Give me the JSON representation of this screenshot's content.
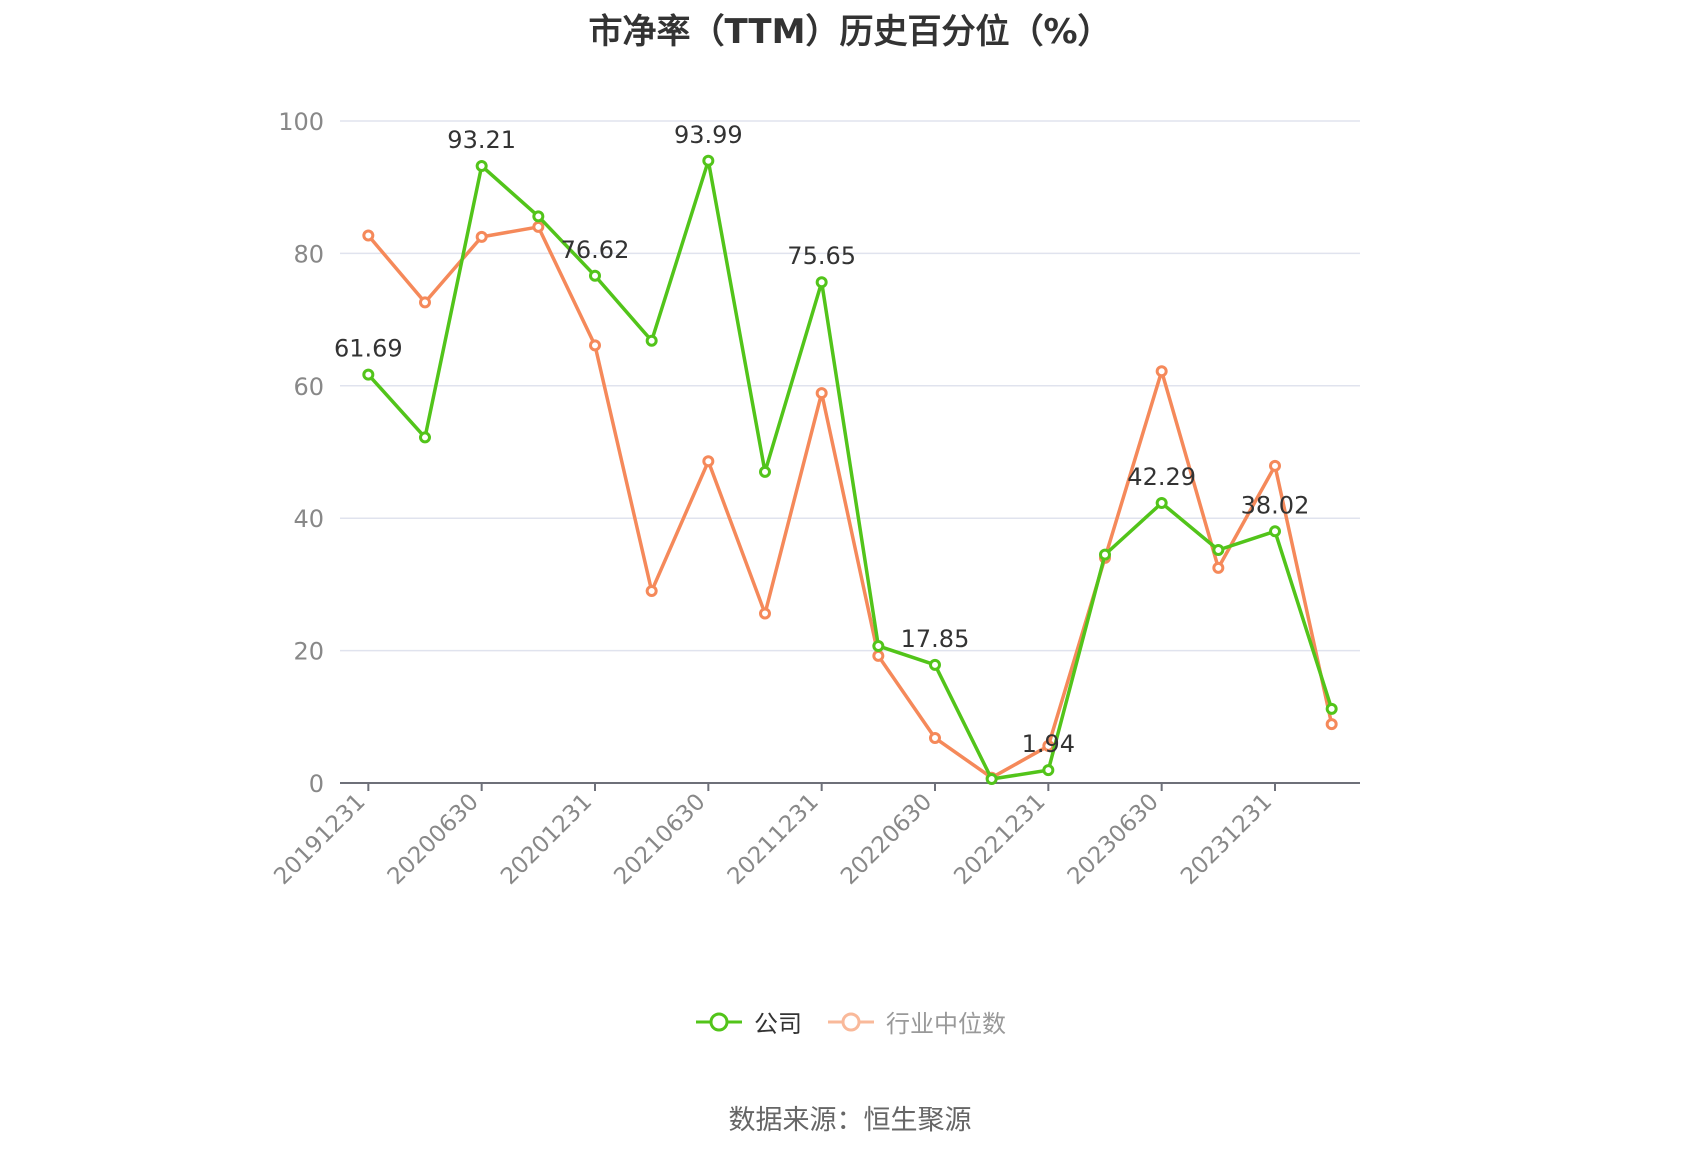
{
  "chart_data": {
    "type": "line",
    "title": "市净率（TTM）历史百分位（%）",
    "source": "数据来源：恒生聚源",
    "x": [
      "20191231",
      "20200331",
      "20200630",
      "20200930",
      "20201231",
      "20210331",
      "20210630",
      "20210930",
      "20211231",
      "20220331",
      "20220630",
      "20220930",
      "20221231",
      "20230331",
      "20230630",
      "20230930",
      "20231231",
      "20240331"
    ],
    "x_tick_labels": [
      "20191231",
      "20200630",
      "20201231",
      "20210630",
      "20211231",
      "20220630",
      "20221231",
      "20230630",
      "20231231"
    ],
    "ylim": [
      0,
      100
    ],
    "y_ticks": [
      "0",
      "20",
      "40",
      "60",
      "80",
      "100"
    ],
    "grid": true,
    "legend_position": "bottom",
    "series": [
      {
        "name": "公司",
        "color": "#52c41a",
        "values": [
          61.69,
          52.2,
          93.21,
          85.6,
          76.62,
          66.8,
          93.99,
          47.0,
          75.65,
          20.7,
          17.85,
          0.6,
          1.94,
          34.5,
          42.29,
          35.2,
          38.02,
          11.2
        ],
        "labels": [
          "61.69",
          "",
          "93.21",
          "",
          "76.62",
          "",
          "93.99",
          "",
          "75.65",
          "",
          "17.85",
          "",
          "1.94",
          "",
          "42.29",
          "",
          "38.02",
          ""
        ]
      },
      {
        "name": "行业中位数",
        "color": "#f5895a",
        "values": [
          82.7,
          72.6,
          82.5,
          84.0,
          66.1,
          29.0,
          48.6,
          25.6,
          58.9,
          19.2,
          6.8,
          0.8,
          5.6,
          34.0,
          62.2,
          32.5,
          47.9,
          8.9
        ]
      }
    ]
  }
}
